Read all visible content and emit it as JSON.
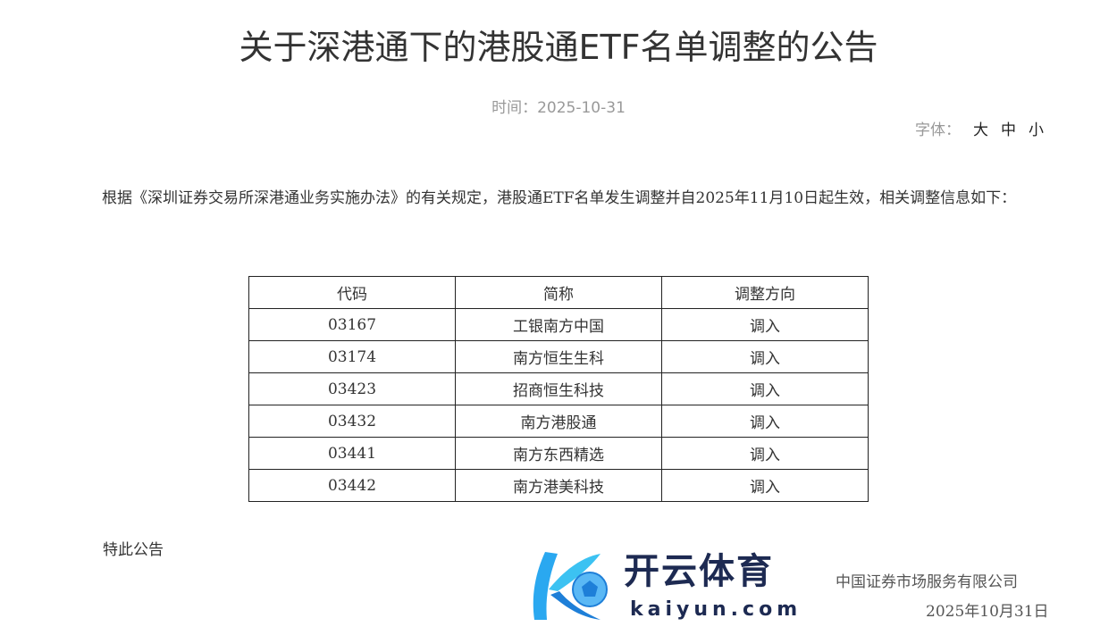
{
  "title": "关于深港通下的港股通ETF名单调整的公告",
  "time": "时间：2025-10-31",
  "font_size": {
    "label": "字体：",
    "large": "大",
    "medium": "中",
    "small": "小"
  },
  "body": "根据《深圳证券交易所深港通业务实施办法》的有关规定，港股通ETF名单发生调整并自2025年11月10日起生效，相关调整信息如下：",
  "table": {
    "headers": [
      "代码",
      "简称",
      "调整方向"
    ],
    "rows": [
      [
        "03167",
        "工银南方中国",
        "调入"
      ],
      [
        "03174",
        "南方恒生生科",
        "调入"
      ],
      [
        "03423",
        "招商恒生科技",
        "调入"
      ],
      [
        "03432",
        "南方港股通",
        "调入"
      ],
      [
        "03441",
        "南方东西精选",
        "调入"
      ],
      [
        "03442",
        "南方港美科技",
        "调入"
      ]
    ]
  },
  "closing": "特此公告",
  "signature": "中国证券市场服务有限公司",
  "signature_date": "2025年10月31日",
  "watermark": {
    "brand_cn": "开云体育",
    "brand_en": "kaiyun.com"
  }
}
